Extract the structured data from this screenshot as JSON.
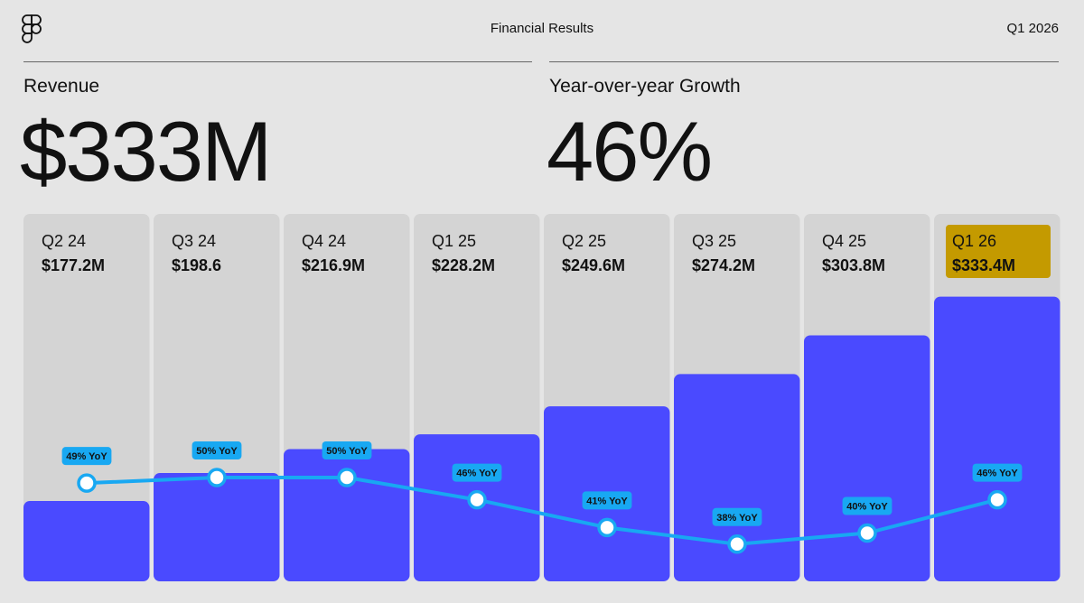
{
  "header": {
    "logo_icon": "figma-logo-icon",
    "title": "Financial Results",
    "period": "Q1 2026"
  },
  "kpis": [
    {
      "label": "Revenue",
      "value": "$333M"
    },
    {
      "label": "Year-over-year Growth",
      "value": "46%"
    }
  ],
  "colors": {
    "background": "#e5e5e5",
    "column": "#d4d4d4",
    "bar": "#4a4aff",
    "line": "#18a8f2",
    "highlight": "#c49a00"
  },
  "chart_data": {
    "type": "bar",
    "categories": [
      "Q2 24",
      "Q3 24",
      "Q4 24",
      "Q1 25",
      "Q2 25",
      "Q3 25",
      "Q4 25",
      "Q1 26"
    ],
    "value_labels": [
      "$177.2M",
      "$198.6",
      "$216.9M",
      "$228.2M",
      "$249.6M",
      "$274.2M",
      "$303.8M",
      "$333.4M"
    ],
    "values": [
      177.2,
      198.6,
      216.9,
      228.2,
      249.6,
      274.2,
      303.8,
      333.4
    ],
    "unit": "$M",
    "highlight_index": 7,
    "line_series": {
      "values": [
        49,
        50,
        50,
        46,
        41,
        38,
        40,
        46
      ],
      "labels": [
        "49% YoY",
        "50% YoY",
        "50% YoY",
        "46% YoY",
        "41% YoY",
        "38% YoY",
        "40% YoY",
        "46% YoY"
      ]
    }
  }
}
